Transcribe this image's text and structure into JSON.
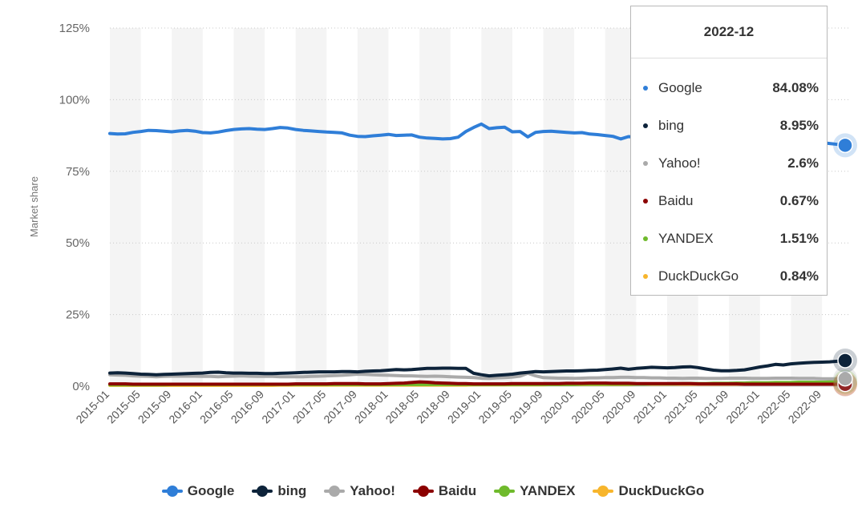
{
  "chart_data": {
    "type": "line",
    "ylabel": "Market share",
    "ylim": [
      0,
      125
    ],
    "yticks": [
      "0%",
      "25%",
      "50%",
      "75%",
      "100%",
      "125%"
    ],
    "x_tick_labels": [
      "2015-01",
      "2015-05",
      "2015-09",
      "2016-01",
      "2016-05",
      "2016-09",
      "2017-01",
      "2017-05",
      "2017-09",
      "2018-01",
      "2018-05",
      "2018-09",
      "2019-01",
      "2019-05",
      "2019-09",
      "2020-01",
      "2020-05",
      "2020-09",
      "2021-01",
      "2021-05",
      "2021-09",
      "2022-01",
      "2022-05",
      "2022-09"
    ],
    "x_start": "2015-01",
    "x_end": "2022-12",
    "grid": "horizontal dotted lines with alternating vertical shaded bands",
    "legend_position": "bottom",
    "series": [
      {
        "name": "Google",
        "color": "#2f7ed8",
        "values": [
          88.2,
          88.0,
          88.1,
          88.6,
          88.9,
          89.3,
          89.2,
          89.0,
          88.8,
          89.1,
          89.3,
          89.0,
          88.5,
          88.4,
          88.7,
          89.2,
          89.6,
          89.8,
          89.9,
          89.7,
          89.6,
          89.9,
          90.3,
          90.1,
          89.6,
          89.3,
          89.1,
          88.9,
          88.7,
          88.6,
          88.4,
          87.6,
          87.2,
          87.1,
          87.4,
          87.6,
          87.9,
          87.5,
          87.6,
          87.7,
          86.9,
          86.6,
          86.5,
          86.3,
          86.4,
          86.9,
          88.9,
          90.3,
          91.5,
          89.9,
          90.2,
          90.4,
          88.8,
          88.9,
          87.0,
          88.6,
          88.9,
          89.0,
          88.8,
          88.6,
          88.4,
          88.5,
          88.0,
          87.8,
          87.5,
          87.2,
          86.3,
          87.1,
          86.9,
          87.0,
          87.2,
          87.1,
          86.9,
          86.8,
          86.9,
          87.1,
          86.9,
          86.6,
          86.8,
          86.6,
          86.5,
          86.7,
          86.6,
          86.2,
          86.4,
          86.2,
          86.1,
          86.0,
          85.9,
          85.8,
          85.6,
          85.2,
          85.0,
          84.7,
          84.4,
          84.08
        ]
      },
      {
        "name": "bing",
        "color": "#0d233a",
        "values": [
          4.6,
          4.7,
          4.6,
          4.4,
          4.2,
          4.1,
          4.0,
          4.1,
          4.2,
          4.3,
          4.4,
          4.5,
          4.6,
          4.8,
          4.9,
          4.7,
          4.6,
          4.6,
          4.5,
          4.5,
          4.4,
          4.4,
          4.5,
          4.6,
          4.7,
          4.8,
          4.9,
          5.0,
          5.0,
          5.0,
          5.1,
          5.1,
          5.0,
          5.2,
          5.3,
          5.4,
          5.6,
          5.8,
          5.7,
          5.8,
          6.0,
          6.2,
          6.2,
          6.3,
          6.3,
          6.2,
          6.2,
          4.5,
          4.0,
          3.6,
          3.8,
          4.0,
          4.2,
          4.6,
          4.8,
          5.1,
          5.0,
          5.1,
          5.2,
          5.3,
          5.3,
          5.4,
          5.5,
          5.6,
          5.8,
          6.0,
          6.3,
          5.9,
          6.2,
          6.4,
          6.6,
          6.5,
          6.4,
          6.5,
          6.7,
          6.8,
          6.5,
          6.0,
          5.6,
          5.4,
          5.4,
          5.5,
          5.7,
          6.2,
          6.7,
          7.1,
          7.6,
          7.4,
          7.8,
          8.0,
          8.2,
          8.3,
          8.4,
          8.5,
          8.7,
          8.95
        ]
      },
      {
        "name": "Yahoo!",
        "color": "#aaaaaa",
        "values": [
          4.0,
          3.9,
          3.8,
          3.6,
          3.5,
          3.4,
          3.3,
          3.4,
          3.5,
          3.5,
          3.5,
          3.5,
          3.4,
          3.4,
          3.3,
          3.4,
          3.5,
          3.6,
          3.5,
          3.4,
          3.4,
          3.4,
          3.3,
          3.3,
          3.3,
          3.3,
          3.4,
          3.5,
          3.6,
          3.7,
          3.8,
          4.0,
          4.2,
          4.1,
          4.0,
          3.9,
          3.8,
          3.7,
          3.6,
          3.6,
          3.5,
          3.4,
          3.5,
          3.4,
          3.3,
          3.2,
          3.1,
          3.0,
          2.8,
          2.7,
          2.9,
          3.0,
          3.2,
          3.5,
          4.5,
          3.6,
          3.0,
          2.9,
          2.8,
          2.8,
          2.7,
          2.8,
          2.9,
          2.9,
          3.0,
          3.0,
          3.1,
          3.1,
          3.0,
          3.0,
          2.9,
          2.9,
          2.8,
          2.8,
          2.7,
          2.8,
          2.8,
          2.7,
          2.7,
          2.7,
          2.8,
          2.8,
          2.8,
          2.7,
          2.7,
          2.7,
          2.8,
          2.8,
          2.8,
          2.7,
          2.7,
          2.7,
          2.6,
          2.6,
          2.6,
          2.6
        ]
      },
      {
        "name": "Baidu",
        "color": "#8b0000",
        "values": [
          0.8,
          0.8,
          0.8,
          0.7,
          0.7,
          0.7,
          0.7,
          0.7,
          0.7,
          0.7,
          0.7,
          0.7,
          0.7,
          0.7,
          0.7,
          0.7,
          0.7,
          0.7,
          0.7,
          0.7,
          0.7,
          0.7,
          0.7,
          0.7,
          0.8,
          0.8,
          0.8,
          0.8,
          0.8,
          0.9,
          0.9,
          0.9,
          0.9,
          0.8,
          0.8,
          0.8,
          0.9,
          1.0,
          1.1,
          1.3,
          1.5,
          1.4,
          1.2,
          1.1,
          1.0,
          0.9,
          0.9,
          0.8,
          0.8,
          0.8,
          0.8,
          0.8,
          0.9,
          0.9,
          0.9,
          0.9,
          0.9,
          0.9,
          0.9,
          1.0,
          1.0,
          1.0,
          1.1,
          1.1,
          1.1,
          1.0,
          1.0,
          1.0,
          0.9,
          0.9,
          0.9,
          0.9,
          0.9,
          0.9,
          0.9,
          0.9,
          0.8,
          0.8,
          0.8,
          0.8,
          0.8,
          0.8,
          0.7,
          0.7,
          0.7,
          0.7,
          0.7,
          0.7,
          0.7,
          0.7,
          0.7,
          0.7,
          0.7,
          0.7,
          0.7,
          0.67
        ]
      },
      {
        "name": "YANDEX",
        "color": "#6fba2c",
        "values": [
          0.5,
          0.5,
          0.5,
          0.5,
          0.5,
          0.5,
          0.5,
          0.5,
          0.6,
          0.6,
          0.6,
          0.6,
          0.6,
          0.6,
          0.6,
          0.6,
          0.6,
          0.6,
          0.6,
          0.6,
          0.6,
          0.6,
          0.6,
          0.6,
          0.6,
          0.6,
          0.6,
          0.6,
          0.6,
          0.6,
          0.6,
          0.6,
          0.6,
          0.6,
          0.6,
          0.6,
          0.6,
          0.6,
          0.6,
          0.6,
          0.6,
          0.6,
          0.6,
          0.6,
          0.6,
          0.6,
          0.6,
          0.6,
          0.6,
          0.6,
          0.6,
          0.6,
          0.6,
          0.6,
          0.6,
          0.6,
          0.6,
          0.6,
          0.6,
          0.6,
          0.6,
          0.7,
          0.7,
          0.7,
          0.7,
          0.7,
          0.7,
          0.7,
          0.7,
          0.7,
          0.8,
          0.8,
          0.8,
          0.8,
          0.9,
          0.9,
          0.9,
          0.9,
          1.0,
          1.0,
          1.0,
          1.1,
          1.1,
          1.2,
          1.2,
          1.2,
          1.3,
          1.3,
          1.3,
          1.4,
          1.4,
          1.4,
          1.4,
          1.5,
          1.5,
          1.51
        ]
      },
      {
        "name": "DuckDuckGo",
        "color": "#f7b52c",
        "values": [
          0.3,
          0.3,
          0.3,
          0.3,
          0.3,
          0.3,
          0.3,
          0.3,
          0.3,
          0.3,
          0.3,
          0.3,
          0.3,
          0.3,
          0.3,
          0.3,
          0.3,
          0.3,
          0.3,
          0.3,
          0.3,
          0.3,
          0.4,
          0.4,
          0.4,
          0.4,
          0.4,
          0.4,
          0.4,
          0.4,
          0.4,
          0.4,
          0.4,
          0.4,
          0.4,
          0.4,
          0.4,
          0.4,
          0.4,
          0.4,
          0.4,
          0.4,
          0.4,
          0.4,
          0.4,
          0.4,
          0.4,
          0.5,
          0.5,
          0.5,
          0.5,
          0.5,
          0.5,
          0.5,
          0.5,
          0.5,
          0.5,
          0.6,
          0.6,
          0.6,
          0.6,
          0.6,
          0.6,
          0.6,
          0.6,
          0.6,
          0.6,
          0.6,
          0.7,
          0.7,
          0.7,
          0.7,
          0.7,
          0.7,
          0.7,
          0.7,
          0.7,
          0.7,
          0.7,
          0.7,
          0.7,
          0.7,
          0.7,
          0.7,
          0.8,
          0.8,
          0.8,
          0.8,
          0.8,
          0.8,
          0.8,
          0.8,
          0.8,
          0.8,
          0.84,
          0.84
        ]
      }
    ]
  },
  "tooltip": {
    "title": "2022-12",
    "rows": [
      {
        "name": "Google",
        "value": "84.08%",
        "color": "#2f7ed8"
      },
      {
        "name": "bing",
        "value": "8.95%",
        "color": "#0d233a"
      },
      {
        "name": "Yahoo!",
        "value": "2.6%",
        "color": "#aaaaaa"
      },
      {
        "name": "Baidu",
        "value": "0.67%",
        "color": "#8b0000"
      },
      {
        "name": "YANDEX",
        "value": "1.51%",
        "color": "#6fba2c"
      },
      {
        "name": "DuckDuckGo",
        "value": "0.84%",
        "color": "#f7b52c"
      }
    ]
  },
  "legend": {
    "items": [
      {
        "name": "Google",
        "color": "#2f7ed8"
      },
      {
        "name": "bing",
        "color": "#0d233a"
      },
      {
        "name": "Yahoo!",
        "color": "#aaaaaa"
      },
      {
        "name": "Baidu",
        "color": "#8b0000"
      },
      {
        "name": "YANDEX",
        "color": "#6fba2c"
      },
      {
        "name": "DuckDuckGo",
        "color": "#f7b52c"
      }
    ]
  }
}
